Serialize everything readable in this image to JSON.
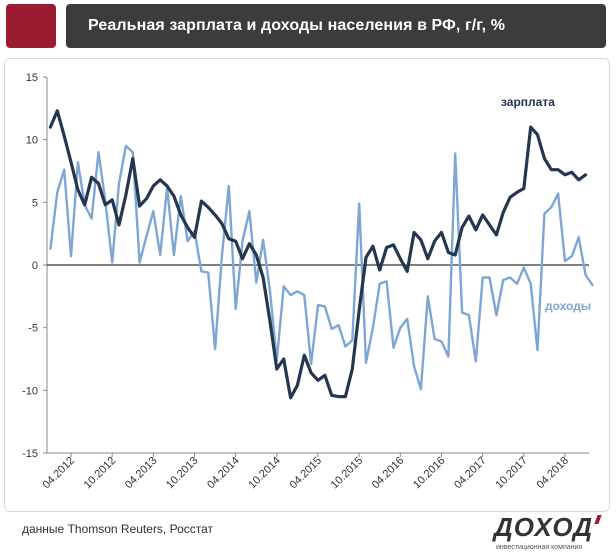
{
  "header": {
    "title": "Реальная зарплата и доходы населения в РФ, г/г, %"
  },
  "footer": {
    "source": "данные Thomson Reuters, Росстат",
    "logo_text": "ДОХОДʼ",
    "logo_subtitle": "инвестиционная компания"
  },
  "colors": {
    "brand": "#9b1b30",
    "title_bar": "#3c3c3c",
    "salary_line": "#243650",
    "income_line": "#7ea6d4",
    "zero_line": "#000000"
  },
  "chart_data": {
    "type": "line",
    "title": "Реальная зарплата и доходы населения в РФ, г/г, %",
    "xlabel": "",
    "ylabel": "",
    "ylim": [
      -15,
      15
    ],
    "yticks": [
      -15,
      -10,
      -5,
      0,
      5,
      10,
      15
    ],
    "grid": false,
    "x_start": "01.2012",
    "x_frequency": "monthly",
    "x_tick_labels": [
      "04.2012",
      "10.2012",
      "04.2013",
      "10.2013",
      "04.2014",
      "10.2014",
      "04.2015",
      "10.2015",
      "04.2016",
      "10.2016",
      "04.2017",
      "10.2017",
      "04.2018"
    ],
    "series": [
      {
        "name": "зарплата",
        "values": [
          11.0,
          12.3,
          10.3,
          8.2,
          6.0,
          4.8,
          7.0,
          6.5,
          4.8,
          5.2,
          3.2,
          5.6,
          8.5,
          4.7,
          5.3,
          6.3,
          6.8,
          6.3,
          5.5,
          4.0,
          3.0,
          2.2,
          5.1,
          4.6,
          4.0,
          3.3,
          2.1,
          1.9,
          0.5,
          1.7,
          0.8,
          -1.0,
          -4.5,
          -8.3,
          -7.5,
          -10.6,
          -9.6,
          -7.2,
          -8.6,
          -9.2,
          -8.8,
          -10.4,
          -10.5,
          -10.5,
          -8.3,
          -3.6,
          0.6,
          1.5,
          -0.4,
          1.4,
          1.6,
          0.5,
          -0.5,
          2.6,
          2.0,
          0.5,
          1.9,
          2.6,
          1.0,
          0.8,
          3.0,
          3.9,
          2.8,
          4.0,
          3.2,
          2.4,
          4.2,
          5.4,
          5.8,
          6.1,
          11.0,
          10.4,
          8.5,
          7.6,
          7.6,
          7.2,
          7.4,
          6.8,
          7.2
        ],
        "label_position": "top-right"
      },
      {
        "name": "доходы",
        "values": [
          1.3,
          5.8,
          7.6,
          0.7,
          8.2,
          4.8,
          3.7,
          9.0,
          5.1,
          0.2,
          6.5,
          9.5,
          9.0,
          0.2,
          2.3,
          4.3,
          0.8,
          6.2,
          0.8,
          5.5,
          1.9,
          2.7,
          -0.5,
          -0.6,
          -6.7,
          0.7,
          6.3,
          -3.5,
          1.9,
          4.3,
          -1.4,
          2.0,
          -2.1,
          -7.6,
          -1.7,
          -2.4,
          -2.1,
          -2.4,
          -7.9,
          -3.2,
          -3.3,
          -5.1,
          -4.8,
          -6.5,
          -6.0,
          4.9,
          -7.8,
          -5.0,
          -1.5,
          -1.3,
          -6.6,
          -5.0,
          -4.3,
          -8.1,
          -9.9,
          -2.5,
          -5.9,
          -6.1,
          -7.3,
          8.9,
          -3.8,
          -4.0,
          -7.7,
          -1.0,
          -1.0,
          -4.0,
          -1.2,
          -1.0,
          -1.5,
          -0.2,
          -1.5,
          -6.8,
          4.1,
          4.6,
          5.7,
          0.3,
          0.7,
          2.2,
          -0.8,
          -1.6
        ],
        "label_position": "right"
      }
    ]
  }
}
